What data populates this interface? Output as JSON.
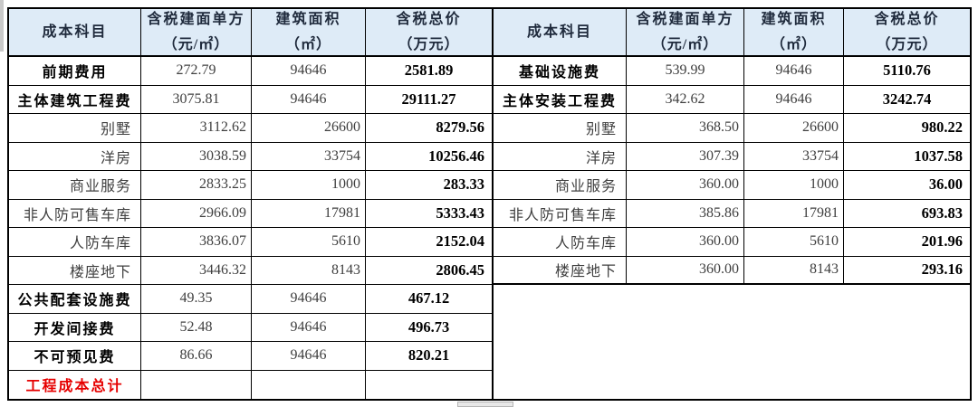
{
  "colors": {
    "header_bg": "#DEEBF7",
    "header_text": "#1f2a3c",
    "border": "#000000",
    "body_text": "#3f3f3f",
    "strong_text": "#000000",
    "grand_total_red": "#e60000"
  },
  "columns": [
    {
      "key": "cost-item",
      "label": "成本科目",
      "unit": ""
    },
    {
      "key": "unit-price",
      "label": "含税建面单方",
      "unit": "（元/㎡）"
    },
    {
      "key": "area",
      "label": "建筑面积",
      "unit": "（㎡）"
    },
    {
      "key": "total-price",
      "label": "含税总价",
      "unit": "（万元）"
    }
  ],
  "left_table": {
    "rows": [
      {
        "type": "main",
        "name": "前期费用",
        "unit_price": "272.79",
        "area": "94646",
        "total": "2581.89"
      },
      {
        "type": "main",
        "name": "主体建筑工程费",
        "unit_price": "3075.81",
        "area": "94646",
        "total": "29111.27"
      },
      {
        "type": "sub",
        "name": "别墅",
        "unit_price": "3112.62",
        "area": "26600",
        "total": "8279.56"
      },
      {
        "type": "sub",
        "name": "洋房",
        "unit_price": "3038.59",
        "area": "33754",
        "total": "10256.46"
      },
      {
        "type": "sub",
        "name": "商业服务",
        "unit_price": "2833.25",
        "area": "1000",
        "total": "283.33"
      },
      {
        "type": "sub",
        "name": "非人防可售车库",
        "unit_price": "2966.09",
        "area": "17981",
        "total": "5333.43"
      },
      {
        "type": "sub",
        "name": "人防车库",
        "unit_price": "3836.07",
        "area": "5610",
        "total": "2152.04"
      },
      {
        "type": "sub",
        "name": "楼座地下",
        "unit_price": "3446.32",
        "area": "8143",
        "total": "2806.45"
      },
      {
        "type": "main",
        "name": "公共配套设施费",
        "unit_price": "49.35",
        "area": "94646",
        "total": "467.12"
      },
      {
        "type": "main",
        "name": "开发间接费",
        "unit_price": "52.48",
        "area": "94646",
        "total": "496.73"
      },
      {
        "type": "main",
        "name": "不可预见费",
        "unit_price": "86.66",
        "area": "94646",
        "total": "820.21"
      },
      {
        "type": "grand",
        "name": "工程成本总计",
        "unit_price": "",
        "area": "",
        "total": ""
      }
    ]
  },
  "right_table": {
    "rows": [
      {
        "type": "main",
        "name": "基础设施费",
        "unit_price": "539.99",
        "area": "94646",
        "total": "5110.76"
      },
      {
        "type": "main",
        "name": "主体安装工程费",
        "unit_price": "342.62",
        "area": "94646",
        "total": "3242.74"
      },
      {
        "type": "sub",
        "name": "别墅",
        "unit_price": "368.50",
        "area": "26600",
        "total": "980.22"
      },
      {
        "type": "sub",
        "name": "洋房",
        "unit_price": "307.39",
        "area": "33754",
        "total": "1037.58"
      },
      {
        "type": "sub",
        "name": "商业服务",
        "unit_price": "360.00",
        "area": "1000",
        "total": "36.00"
      },
      {
        "type": "sub",
        "name": "非人防可售车库",
        "unit_price": "385.86",
        "area": "17981",
        "total": "693.83"
      },
      {
        "type": "sub",
        "name": "人防车库",
        "unit_price": "360.00",
        "area": "5610",
        "total": "201.96"
      },
      {
        "type": "sub",
        "name": "楼座地下",
        "unit_price": "360.00",
        "area": "8143",
        "total": "293.16"
      }
    ]
  }
}
